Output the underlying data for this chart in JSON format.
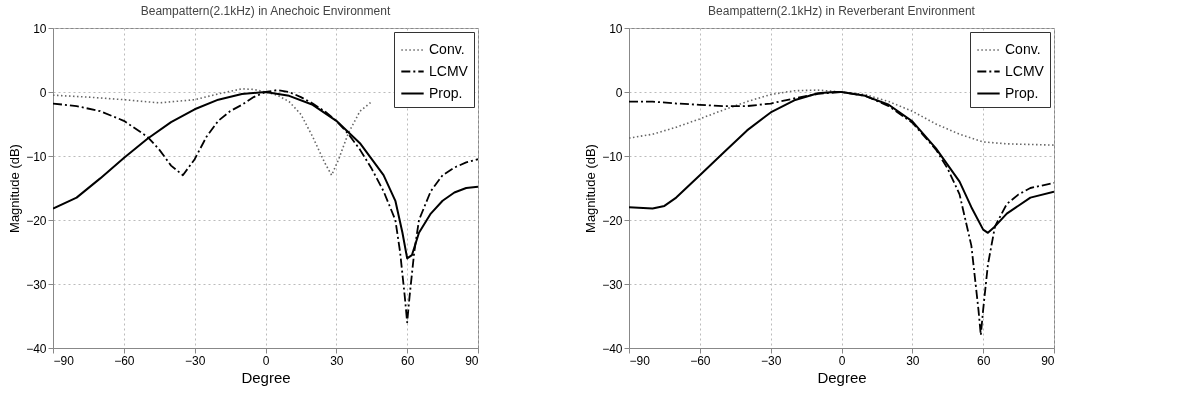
{
  "chart_data": [
    {
      "type": "line",
      "title": "Beampattern(2.1kHz) in Anechoic Environment",
      "xlabel": "Degree",
      "ylabel": "Magnitude (dB)",
      "xlim": [
        -90,
        90
      ],
      "ylim": [
        -40,
        10
      ],
      "xticks": [
        -90,
        -60,
        -30,
        0,
        30,
        60,
        90
      ],
      "yticks": [
        -40,
        -30,
        -20,
        -10,
        0,
        10
      ],
      "grid": true,
      "legend": "top right",
      "series": [
        {
          "name": "Conv.",
          "color": "#666666",
          "line_style": "dotted",
          "x": [
            -90,
            -75,
            -60,
            -45,
            -30,
            -20,
            -10,
            -5,
            0,
            5,
            10,
            15,
            20,
            25,
            28,
            31,
            35,
            40,
            45
          ],
          "values": [
            -0.5,
            -0.8,
            -1.2,
            -1.7,
            -1.2,
            -0.3,
            0.5,
            0.4,
            0,
            -0.5,
            -1.5,
            -3.5,
            -7,
            -11,
            -13,
            -10.5,
            -6.5,
            -3,
            -1.5
          ]
        },
        {
          "name": "LCMV",
          "color": "#000000",
          "line_style": "dashed",
          "x": [
            -90,
            -80,
            -70,
            -60,
            -50,
            -45,
            -40,
            -35,
            -30,
            -25,
            -20,
            -15,
            -10,
            -5,
            0,
            5,
            10,
            15,
            20,
            25,
            30,
            35,
            40,
            45,
            50,
            55,
            57,
            59,
            60,
            61,
            63,
            65,
            70,
            75,
            80,
            85,
            90
          ],
          "values": [
            -1.8,
            -2.2,
            -3,
            -4.5,
            -7,
            -9,
            -11.5,
            -13,
            -10.5,
            -7,
            -4.5,
            -3,
            -2,
            -0.8,
            0,
            0.3,
            0,
            -0.8,
            -1.8,
            -3,
            -4.5,
            -6.5,
            -9,
            -12,
            -15.5,
            -20,
            -25,
            -32,
            -36,
            -32,
            -25,
            -20,
            -15.5,
            -13,
            -11.8,
            -11,
            -10.5
          ]
        },
        {
          "name": "Prop.",
          "color": "#000000",
          "line_style": "solid",
          "x": [
            -90,
            -80,
            -70,
            -60,
            -50,
            -40,
            -30,
            -20,
            -10,
            0,
            10,
            20,
            30,
            40,
            50,
            55,
            58,
            60,
            62,
            65,
            70,
            75,
            80,
            85,
            90
          ],
          "values": [
            -18.2,
            -16.5,
            -13.5,
            -10.3,
            -7.3,
            -4.7,
            -2.7,
            -1.2,
            -0.3,
            0,
            -0.6,
            -2,
            -4.5,
            -8,
            -13,
            -17,
            -22,
            -26,
            -25.5,
            -22,
            -19,
            -17,
            -15.7,
            -15,
            -14.8
          ]
        }
      ]
    },
    {
      "type": "line",
      "title": "Beampattern(2.1kHz) in Reverberant Environment",
      "xlabel": "Degree",
      "ylabel": "Magnitude (dB)",
      "xlim": [
        -90,
        90
      ],
      "ylim": [
        -40,
        10
      ],
      "xticks": [
        -90,
        -60,
        -30,
        0,
        30,
        60,
        90
      ],
      "yticks": [
        -40,
        -30,
        -20,
        -10,
        0,
        10
      ],
      "grid": true,
      "legend": "top right",
      "series": [
        {
          "name": "Conv.",
          "color": "#666666",
          "line_style": "dotted",
          "x": [
            -90,
            -80,
            -70,
            -60,
            -50,
            -40,
            -30,
            -20,
            -10,
            0,
            10,
            20,
            30,
            40,
            50,
            60,
            70,
            80,
            90
          ],
          "values": [
            -7.2,
            -6.6,
            -5.5,
            -4.2,
            -2.8,
            -1.5,
            -0.4,
            0.2,
            0.3,
            0,
            -0.4,
            -1.5,
            -3,
            -5,
            -6.6,
            -7.8,
            -8.1,
            -8.2,
            -8.3
          ]
        },
        {
          "name": "LCMV",
          "color": "#000000",
          "line_style": "dashed",
          "x": [
            -90,
            -80,
            -70,
            -60,
            -50,
            -40,
            -30,
            -20,
            -10,
            0,
            10,
            20,
            30,
            40,
            45,
            50,
            55,
            58,
            59,
            60,
            62,
            65,
            70,
            75,
            80,
            90
          ],
          "values": [
            -1.5,
            -1.5,
            -1.8,
            -2,
            -2.2,
            -2.2,
            -1.8,
            -1,
            -0.3,
            0,
            -0.6,
            -2.2,
            -4.8,
            -9,
            -12,
            -16,
            -24,
            -34,
            -38,
            -34,
            -27,
            -21,
            -17.5,
            -16,
            -15,
            -14.2
          ]
        },
        {
          "name": "Prop.",
          "color": "#000000",
          "line_style": "solid",
          "x": [
            -90,
            -80,
            -75,
            -70,
            -60,
            -50,
            -40,
            -30,
            -20,
            -10,
            -3,
            0,
            10,
            20,
            30,
            40,
            50,
            55,
            60,
            62,
            65,
            70,
            80,
            90
          ],
          "values": [
            -18,
            -18.2,
            -17.8,
            -16.5,
            -13,
            -9.5,
            -6,
            -3.2,
            -1.3,
            -0.2,
            0,
            0,
            -0.6,
            -2,
            -4.6,
            -8.8,
            -14,
            -18,
            -21.5,
            -22,
            -21,
            -19,
            -16.5,
            -15.6
          ]
        }
      ]
    }
  ]
}
